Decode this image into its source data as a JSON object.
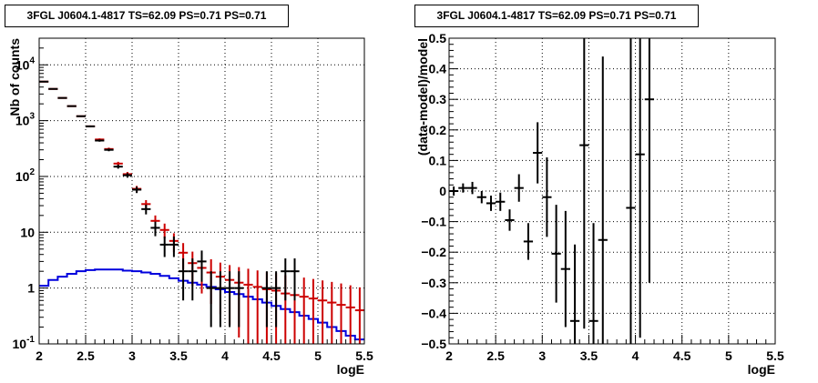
{
  "chart_data": [
    {
      "type": "histogram",
      "title": "3FGL J0604.1-4817 TS=62.09 PS=0.71 PS=0.71",
      "xlabel": "logE",
      "ylabel": "Nb of counts",
      "xlim": [
        2,
        5.5
      ],
      "ylim": [
        0.1,
        30000
      ],
      "yscale": "log",
      "grid": true,
      "x_ticks": [
        "2",
        "2.5",
        "3",
        "3.5",
        "4",
        "4.5",
        "5",
        "5.5"
      ],
      "y_ticks": [
        {
          "value": 0.1,
          "label": "10",
          "exp": "-1"
        },
        {
          "value": 1,
          "label": "1",
          "exp": ""
        },
        {
          "value": 10,
          "label": "10",
          "exp": ""
        },
        {
          "value": 100,
          "label": "10",
          "exp": "2"
        },
        {
          "value": 1000,
          "label": "10",
          "exp": "3"
        },
        {
          "value": 10000,
          "label": "10",
          "exp": "4"
        }
      ],
      "bin_edges": [
        2.0,
        2.1,
        2.2,
        2.3,
        2.4,
        2.5,
        2.6,
        2.7,
        2.8,
        2.9,
        3.0,
        3.1,
        3.2,
        3.3,
        3.4,
        3.5,
        3.6,
        3.7,
        3.8,
        3.9,
        4.0,
        4.1,
        4.2,
        4.3,
        4.4,
        4.5,
        4.6,
        4.7,
        4.8,
        4.9,
        5.0,
        5.1,
        5.2,
        5.3,
        5.4,
        5.5
      ],
      "series": [
        {
          "name": "",
          "color": "#000000",
          "style": "points",
          "x": [
            2.05,
            2.15,
            2.25,
            2.35,
            2.45,
            2.55,
            2.65,
            2.75,
            2.85,
            2.95,
            3.05,
            3.15,
            3.25,
            3.35,
            3.45,
            3.55,
            3.65,
            3.75,
            3.85,
            3.95,
            4.05,
            4.15,
            4.25,
            4.35,
            4.45,
            4.55,
            4.65,
            4.75
          ],
          "y": [
            5000,
            3700,
            2550,
            1820,
            1200,
            790,
            440,
            300,
            150,
            105,
            58,
            26,
            12,
            6,
            6,
            2,
            2,
            3,
            1,
            1,
            1,
            1,
            null,
            null,
            1,
            1,
            2,
            2
          ],
          "yerr_low": [
            70,
            61,
            50,
            43,
            35,
            28,
            21,
            17,
            12,
            10,
            7.6,
            5.1,
            3.5,
            2.4,
            2.4,
            1.4,
            1.4,
            1.7,
            0.8,
            0.8,
            0.8,
            0.8,
            null,
            null,
            0.8,
            0.8,
            1.4,
            1.4
          ],
          "yerr_high": [
            70,
            61,
            50,
            43,
            35,
            28,
            21,
            17,
            12,
            10,
            7.6,
            5.1,
            3.5,
            2.4,
            2.4,
            1.4,
            1.4,
            1.7,
            1,
            1,
            1,
            1,
            null,
            null,
            1,
            1,
            1.4,
            1.4
          ]
        },
        {
          "name": "",
          "color": "#cc0000",
          "style": "points",
          "x": [
            2.05,
            2.15,
            2.25,
            2.35,
            2.45,
            2.55,
            2.65,
            2.75,
            2.85,
            2.95,
            3.05,
            3.15,
            3.25,
            3.35,
            3.45,
            3.55,
            3.65,
            3.75,
            3.85,
            3.95,
            4.05,
            4.15,
            4.25,
            4.35,
            4.45,
            4.55,
            4.65,
            4.75,
            4.85,
            4.95,
            5.05,
            5.15,
            5.25,
            5.35,
            5.45
          ],
          "y": [
            5000,
            3700,
            2550,
            1820,
            1200,
            790,
            460,
            310,
            170,
            110,
            60,
            32,
            16,
            11,
            7,
            4.3,
            2.8,
            2.3,
            1.9,
            1.6,
            1.4,
            1.25,
            1.15,
            1.05,
            0.95,
            0.9,
            0.8,
            0.75,
            0.7,
            0.65,
            0.6,
            0.55,
            0.5,
            0.45,
            0.4
          ],
          "yerr_low": [
            70,
            61,
            50,
            43,
            35,
            28,
            21,
            18,
            13,
            10.5,
            7.7,
            5.7,
            4,
            3.3,
            2.6,
            2.1,
            1.7,
            1.5,
            1.38,
            1.26,
            1.18,
            1.12,
            1.07,
            1.02,
            0.94,
            0.89,
            0.79,
            0.74,
            0.69,
            0.64,
            0.59,
            0.54,
            0.49,
            0.44,
            0.39
          ],
          "yerr_high": [
            70,
            61,
            50,
            43,
            35,
            28,
            21,
            18,
            13,
            10.5,
            7.7,
            5.7,
            4,
            3.3,
            2.6,
            2.1,
            1.7,
            1.5,
            1.38,
            1.26,
            1.18,
            1.12,
            1.07,
            1.02,
            0.98,
            0.95,
            0.9,
            0.87,
            0.84,
            0.81,
            0.77,
            0.74,
            0.71,
            0.67,
            0.63
          ]
        },
        {
          "name": "",
          "color": "#0000dd",
          "style": "step",
          "values": [
            1.1,
            1.4,
            1.6,
            1.8,
            2.0,
            2.1,
            2.15,
            2.15,
            2.15,
            2.05,
            2.0,
            1.9,
            1.8,
            1.65,
            1.5,
            1.35,
            1.25,
            1.15,
            1.05,
            0.95,
            0.85,
            0.78,
            0.7,
            0.63,
            0.55,
            0.48,
            0.42,
            0.37,
            0.32,
            0.28,
            0.24,
            0.2,
            0.17,
            0.14,
            0.12
          ]
        }
      ]
    },
    {
      "type": "scatter",
      "title": "3FGL J0604.1-4817 TS=62.09 PS=0.71 PS=0.71",
      "xlabel": "logE",
      "ylabel": "(data-model)/model",
      "xlim": [
        2,
        5.5
      ],
      "ylim": [
        -0.5,
        0.5
      ],
      "grid": true,
      "x_ticks": [
        "2",
        "2.5",
        "3",
        "3.5",
        "4",
        "4.5",
        "5",
        "5.5"
      ],
      "y_ticks": [
        "−0.5",
        "−0.4",
        "−0.3",
        "−0.2",
        "−0.1",
        "0",
        "0.1",
        "0.2",
        "0.3",
        "0.4",
        "0.5"
      ],
      "y_tick_values": [
        -0.5,
        -0.4,
        -0.3,
        -0.2,
        -0.1,
        0,
        0.1,
        0.2,
        0.3,
        0.4,
        0.5
      ],
      "series": [
        {
          "name": "",
          "color": "#000000",
          "x": [
            2.05,
            2.15,
            2.25,
            2.35,
            2.45,
            2.55,
            2.65,
            2.75,
            2.85,
            2.95,
            3.05,
            3.15,
            3.25,
            3.35,
            3.45,
            3.55,
            3.65,
            3.95,
            4.05,
            4.15
          ],
          "y": [
            0.0,
            0.01,
            0.01,
            -0.02,
            -0.04,
            -0.035,
            -0.095,
            0.01,
            -0.165,
            0.125,
            -0.02,
            -0.205,
            -0.255,
            -0.425,
            0.15,
            -0.425,
            -0.16,
            -0.055,
            0.12,
            0.3
          ],
          "yerr": [
            0.015,
            0.015,
            0.02,
            0.02,
            0.025,
            0.03,
            0.035,
            0.045,
            0.06,
            0.1,
            0.13,
            0.16,
            0.19,
            0.25,
            0.6,
            0.32,
            0.6,
            0.6,
            0.6,
            0.6
          ]
        }
      ]
    }
  ]
}
